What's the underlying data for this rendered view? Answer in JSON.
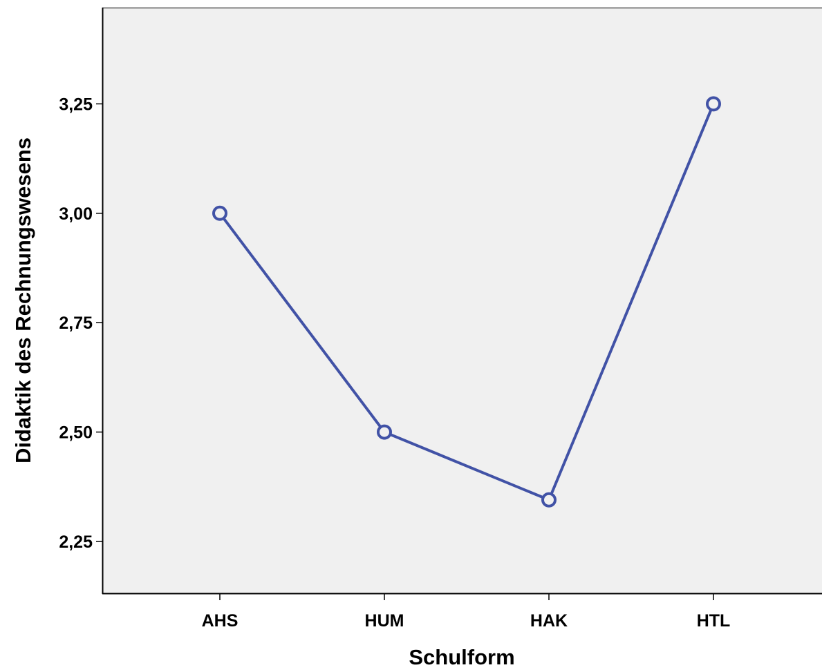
{
  "chart_data": {
    "type": "line",
    "title": "",
    "xlabel": "Schulform",
    "ylabel": "Didaktik des Rechnungswesens",
    "categories": [
      "AHS",
      "HUM",
      "HAK",
      "HTL"
    ],
    "series": [
      {
        "values": [
          3.0,
          2.5,
          2.345,
          3.25
        ]
      }
    ],
    "ylim": [
      2.13,
      3.47
    ],
    "yticks": [
      2.25,
      2.5,
      2.75,
      3.0,
      3.25
    ],
    "ytick_labels": [
      "2,25",
      "2,50",
      "2,75",
      "3,00",
      "3,25"
    ],
    "grid": false,
    "legend": "none",
    "colors": {
      "plot_background": "#f0f0f0",
      "line": "#4152a6",
      "axis": "#000000",
      "text": "#000000"
    }
  }
}
